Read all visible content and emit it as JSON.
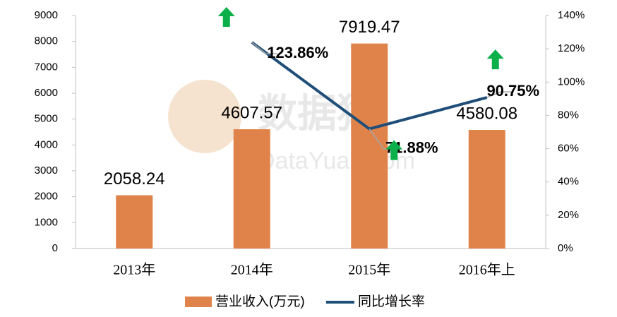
{
  "chart_data": {
    "type": "bar-line",
    "watermark": [
      "数据猿",
      "DataYuan.com"
    ],
    "categories": [
      "2013年",
      "2014年",
      "2015年",
      "2016年上"
    ],
    "series": [
      {
        "name": "营业收入(万元)",
        "type": "bar",
        "color": "#E0834A",
        "values": [
          2058.24,
          4607.57,
          7919.47,
          4580.08
        ]
      },
      {
        "name": "同比增长率",
        "type": "line",
        "axis": "y2",
        "color": "#1F4E79",
        "values": [
          null,
          123.86,
          71.88,
          90.75
        ],
        "value_labels": [
          null,
          "123.86%",
          "71.88%",
          "90.75%"
        ]
      }
    ],
    "ylim": [
      0,
      9000
    ],
    "yticks": [
      0,
      1000,
      2000,
      3000,
      4000,
      5000,
      6000,
      7000,
      8000,
      9000
    ],
    "y2lim": [
      0,
      140
    ],
    "y2ticks": [
      {
        "value": 0,
        "label": "0%"
      },
      {
        "value": 20,
        "label": "20%"
      },
      {
        "value": 40,
        "label": "40%"
      },
      {
        "value": 60,
        "label": "60%"
      },
      {
        "value": 80,
        "label": "80%"
      },
      {
        "value": 100,
        "label": "100%"
      },
      {
        "value": 120,
        "label": "120%"
      },
      {
        "value": 140,
        "label": "140%"
      }
    ],
    "grid": false,
    "legend": "bottom"
  }
}
